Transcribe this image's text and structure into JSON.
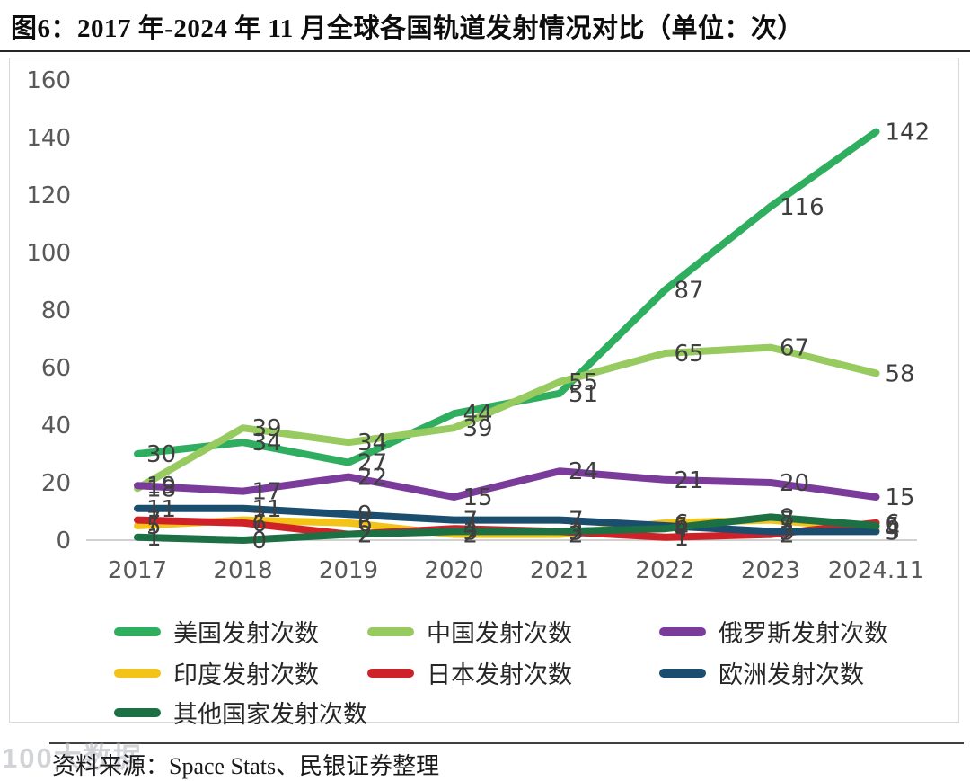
{
  "title": "图6：2017 年-2024 年 11 月全球各国轨道发射情况对比（单位：次）",
  "source_note": "资料来源：Space Stats、民银证券整理",
  "watermark": "100大数据",
  "colors": {
    "us": "#2fae60",
    "china": "#97ca5f",
    "russia": "#7a3b9b",
    "india": "#f3c317",
    "japan": "#cf2128",
    "europe": "#1b4e6e",
    "others": "#1d7044",
    "axis_text": "#595959",
    "data_label": "#3f3f3f",
    "axis_line": "#c0c0c0"
  },
  "axis": {
    "y_ticks": [
      0,
      20,
      40,
      60,
      80,
      100,
      120,
      140,
      160
    ],
    "x_labels": [
      "2017",
      "2018",
      "2019",
      "2020",
      "2021",
      "2022",
      "2023",
      "2024.11"
    ]
  },
  "chart_data": {
    "type": "line",
    "title": "2017 年-2024 年 11 月全球各国轨道发射情况对比（单位：次）",
    "categories": [
      "2017",
      "2018",
      "2019",
      "2020",
      "2021",
      "2022",
      "2023",
      "2024.11"
    ],
    "series": [
      {
        "key": "us",
        "name": "美国发射次数",
        "color": "#2fae60",
        "values": [
          30,
          34,
          27,
          44,
          51,
          87,
          116,
          142
        ]
      },
      {
        "key": "china",
        "name": "中国发射次数",
        "color": "#97ca5f",
        "values": [
          18,
          39,
          34,
          39,
          55,
          65,
          67,
          58
        ]
      },
      {
        "key": "russia",
        "name": "俄罗斯发射次数",
        "color": "#7a3b9b",
        "values": [
          19,
          17,
          22,
          15,
          24,
          21,
          20,
          15
        ]
      },
      {
        "key": "india",
        "name": "印度发射次数",
        "color": "#f3c317",
        "values": [
          5,
          7,
          6,
          2,
          2,
          6,
          7,
          4
        ]
      },
      {
        "key": "japan",
        "name": "日本发射次数",
        "color": "#cf2128",
        "values": [
          7,
          6,
          2,
          4,
          3,
          1,
          2,
          6
        ]
      },
      {
        "key": "europe",
        "name": "欧洲发射次数",
        "color": "#1b4e6e",
        "values": [
          11,
          11,
          9,
          7,
          7,
          5,
          3,
          3
        ]
      },
      {
        "key": "others",
        "name": "其他国家发射次数",
        "color": "#1d7044",
        "values": [
          1,
          0,
          2,
          3,
          3,
          4,
          8,
          5
        ]
      }
    ],
    "xlabel": "",
    "ylabel": "",
    "ylim": [
      0,
      160
    ],
    "grid": false,
    "data_labels": true,
    "legend_position": "bottom"
  }
}
